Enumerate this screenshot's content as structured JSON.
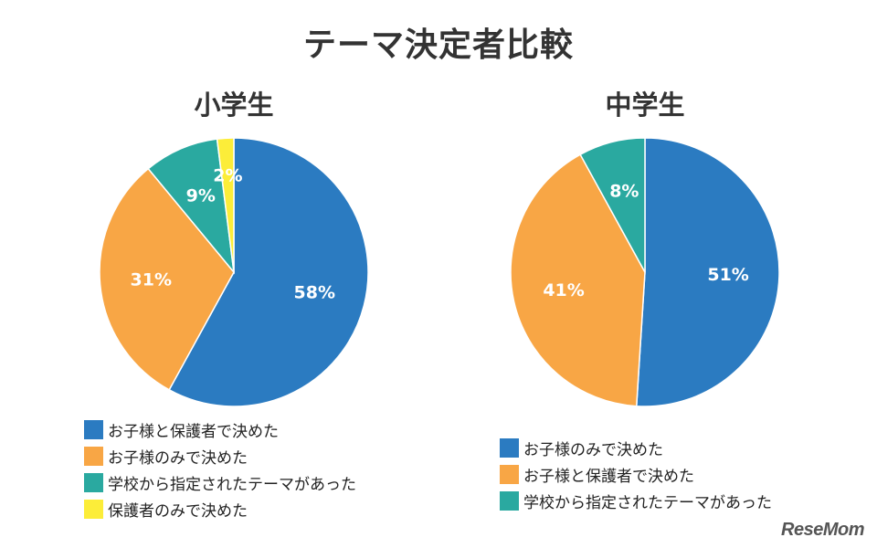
{
  "title": "テーマ決定者比較",
  "logo": "ReseMom",
  "chart_data": [
    {
      "type": "pie",
      "title": "小学生",
      "series": [
        {
          "label": "お子様と保護者で決めた",
          "value": 58,
          "display": "58%",
          "color": "#2b7bc1"
        },
        {
          "label": "お子様のみで決めた",
          "value": 31,
          "display": "31%",
          "color": "#f8a645"
        },
        {
          "label": "学校から指定されたテーマがあった",
          "value": 9,
          "display": "9%",
          "color": "#2aa9a0"
        },
        {
          "label": "保護者のみで決めた",
          "value": 2,
          "display": "2%",
          "color": "#fced39"
        }
      ]
    },
    {
      "type": "pie",
      "title": "中学生",
      "series": [
        {
          "label": "お子様のみで決めた",
          "value": 51,
          "display": "51%",
          "color": "#2b7bc1"
        },
        {
          "label": "お子様と保護者で決めた",
          "value": 41,
          "display": "41%",
          "color": "#f8a645"
        },
        {
          "label": "学校から指定されたテーマがあった",
          "value": 8,
          "display": "8%",
          "color": "#2aa9a0"
        }
      ]
    }
  ]
}
